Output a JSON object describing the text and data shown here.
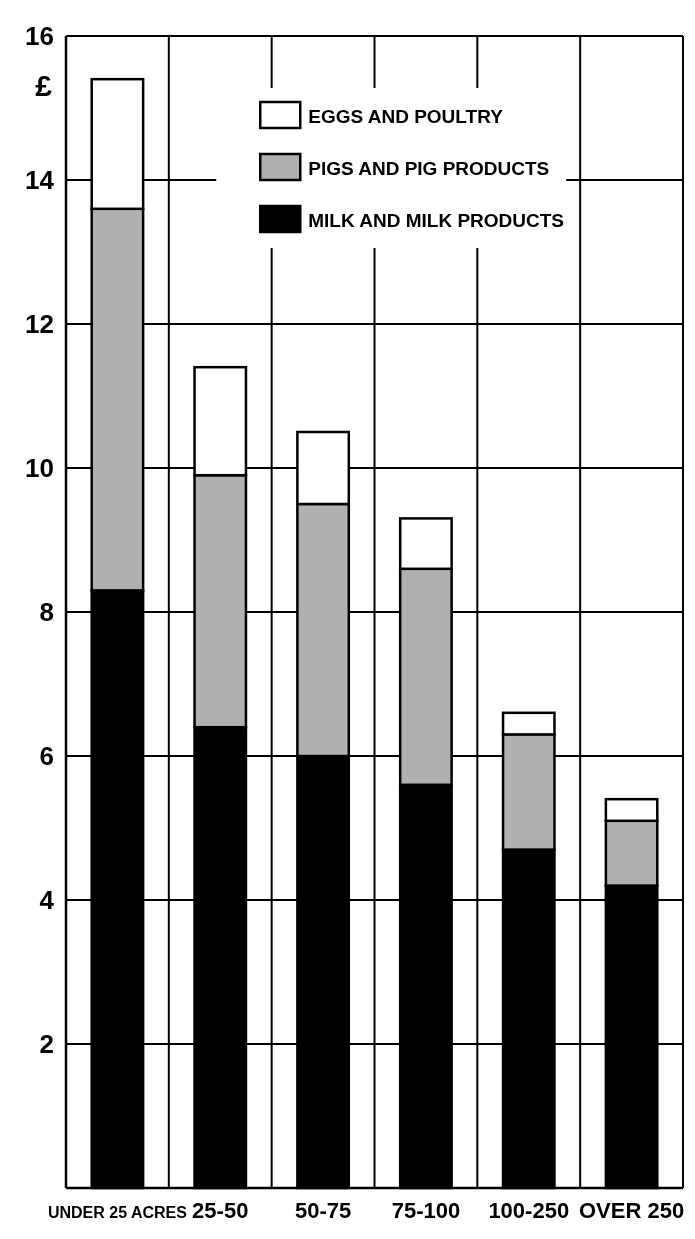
{
  "chart_data": {
    "type": "bar",
    "stacked": true,
    "ylabel": "£",
    "categories": [
      "UNDER 25 ACRES",
      "25-50",
      "50-75",
      "75-100",
      "100-250",
      "OVER 250"
    ],
    "series": [
      {
        "name": "MILK AND MILK PRODUCTS",
        "color": "#000000",
        "values": [
          8.3,
          6.4,
          6.0,
          5.6,
          4.7,
          4.2
        ]
      },
      {
        "name": "PIGS AND PIG PRODUCTS",
        "color": "#b0b0b0",
        "values": [
          5.3,
          3.5,
          3.5,
          3.0,
          1.6,
          0.9
        ]
      },
      {
        "name": "EGGS AND POULTRY",
        "color": "#ffffff",
        "values": [
          1.8,
          1.5,
          1.0,
          0.7,
          0.3,
          0.3
        ]
      }
    ],
    "ylim": [
      0,
      16
    ],
    "yticks": [
      2,
      4,
      6,
      8,
      10,
      12,
      14,
      16
    ],
    "grid": true,
    "legend": "top right"
  }
}
